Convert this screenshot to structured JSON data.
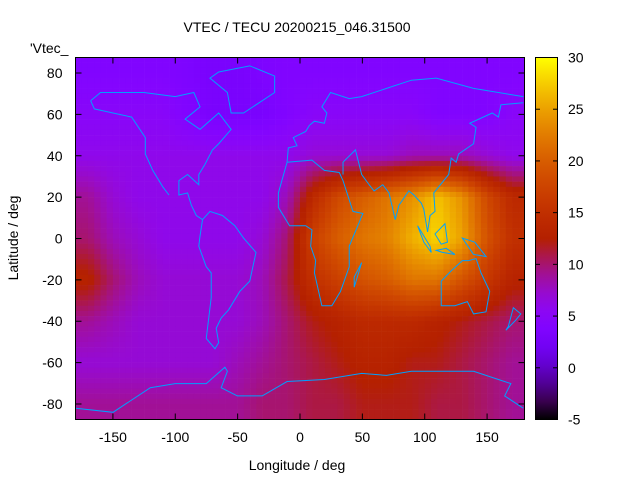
{
  "chart_data": {
    "type": "heatmap",
    "title": "VTEC / TECU 20200215_046.31500",
    "xlabel": "Longitude / deg",
    "ylabel": "Latitude / deg",
    "key_label": "'Vtec_",
    "xlim": [
      -180,
      180
    ],
    "ylim": [
      -87.5,
      87.5
    ],
    "zlim": [
      -5,
      30
    ],
    "xticks": [
      -150,
      -100,
      -50,
      0,
      50,
      100,
      150
    ],
    "yticks": [
      -80,
      -60,
      -40,
      -20,
      0,
      20,
      40,
      60,
      80
    ],
    "cbticks": [
      -5,
      0,
      5,
      10,
      15,
      20,
      25,
      30
    ],
    "grid_lon_centers": [
      -170,
      -150,
      -130,
      -110,
      -90,
      -70,
      -50,
      -30,
      -10,
      10,
      30,
      50,
      70,
      90,
      110,
      130,
      150,
      170
    ],
    "grid_lat_centers": [
      80,
      60,
      40,
      20,
      0,
      -20,
      -40,
      -60,
      -80
    ],
    "values": [
      [
        4,
        4,
        4,
        4,
        3.5,
        3,
        3,
        3.5,
        4,
        4,
        4,
        4,
        4,
        4,
        4,
        4,
        4,
        4
      ],
      [
        5,
        5,
        5,
        5,
        4,
        3,
        3,
        3,
        4,
        5,
        5,
        5,
        5,
        5,
        4,
        4,
        4,
        5
      ],
      [
        6,
        6,
        6,
        6,
        6,
        6,
        6,
        6,
        6,
        7,
        7,
        7,
        7,
        8,
        8,
        8,
        7,
        6
      ],
      [
        9,
        7,
        6,
        6,
        6,
        6,
        6,
        6,
        8,
        14,
        18,
        20,
        22,
        24,
        27,
        24,
        18,
        14
      ],
      [
        10,
        8,
        7,
        6,
        6,
        6,
        6,
        7,
        10,
        17,
        20,
        22,
        23,
        26,
        28,
        25,
        19,
        15
      ],
      [
        13,
        10,
        8,
        7,
        7,
        7,
        7,
        8,
        11,
        15,
        17,
        19,
        20,
        22,
        22,
        19,
        16,
        13
      ],
      [
        9,
        8,
        7,
        7,
        7,
        7,
        7,
        8,
        10,
        12,
        13,
        14,
        14,
        14,
        13,
        12,
        11,
        10
      ],
      [
        7,
        7,
        7,
        7,
        7,
        7,
        8,
        9,
        10,
        11,
        12,
        13,
        13,
        12,
        12,
        11,
        10,
        9
      ],
      [
        9,
        9,
        9,
        9,
        9,
        9,
        9,
        10,
        10,
        11,
        11,
        12,
        12,
        12,
        11,
        11,
        10,
        9
      ]
    ],
    "coastline_color": "#00a0ff"
  }
}
